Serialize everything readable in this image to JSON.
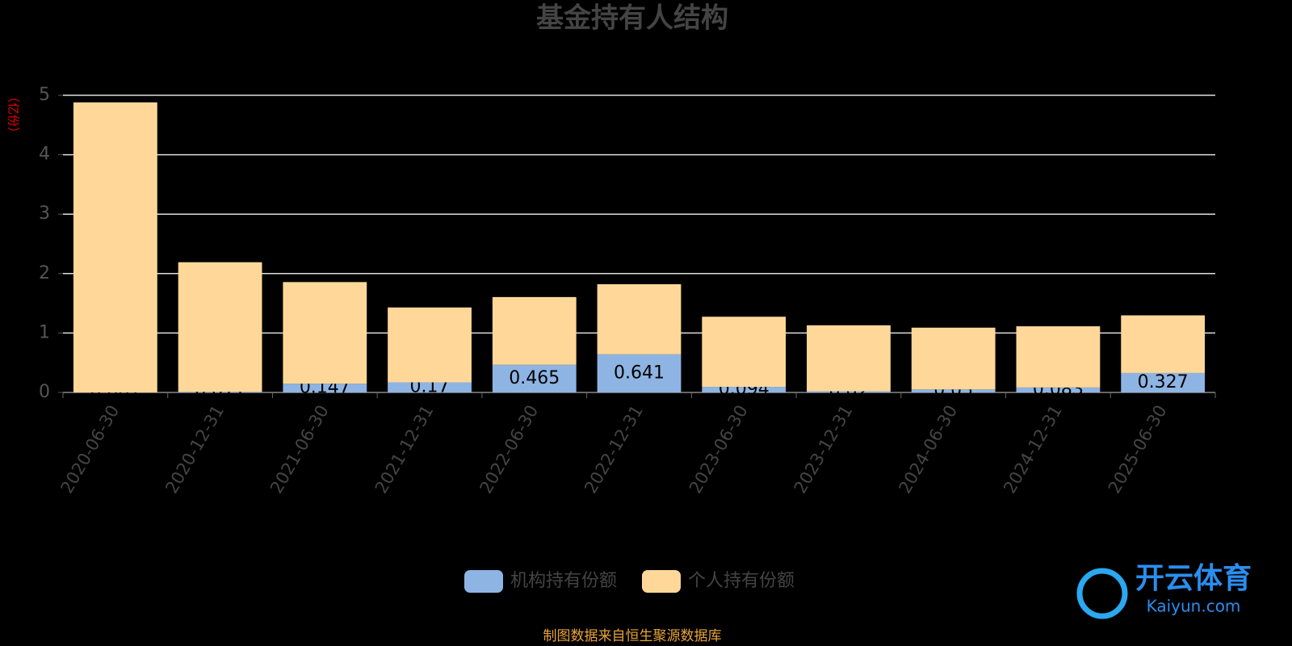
{
  "chart_data": {
    "type": "stacked_bar",
    "title": "基金持有人结构",
    "y_label": "（亿份）",
    "categories": [
      "2020-06-30",
      "2020-12-31",
      "2021-06-30",
      "2021-12-31",
      "2022-06-30",
      "2022-12-31",
      "2023-06-30",
      "2023-12-31",
      "2024-06-30",
      "2024-12-31",
      "2025-06-30"
    ],
    "series": [
      {
        "name": "机构持有份额",
        "color": "#8eb4e3",
        "values": [
          0.001,
          0.011,
          0.147,
          0.17,
          0.465,
          0.641,
          0.094,
          0.02,
          0.05,
          0.083,
          0.327
        ],
        "show_labels": true
      },
      {
        "name": "个人持有份额",
        "color": "#ffd899",
        "values": [
          4.88,
          2.18,
          1.71,
          1.26,
          1.14,
          1.18,
          1.18,
          1.11,
          1.04,
          1.03,
          0.97
        ],
        "show_labels": false
      }
    ],
    "ylim": [
      0,
      5
    ],
    "yticks": [
      0,
      1,
      2,
      3,
      4,
      5
    ],
    "grid": true,
    "footer": "制图数据来自恒生聚源数据库"
  },
  "watermark": {
    "text": "开云体育",
    "url": "Kaiyun.com"
  }
}
